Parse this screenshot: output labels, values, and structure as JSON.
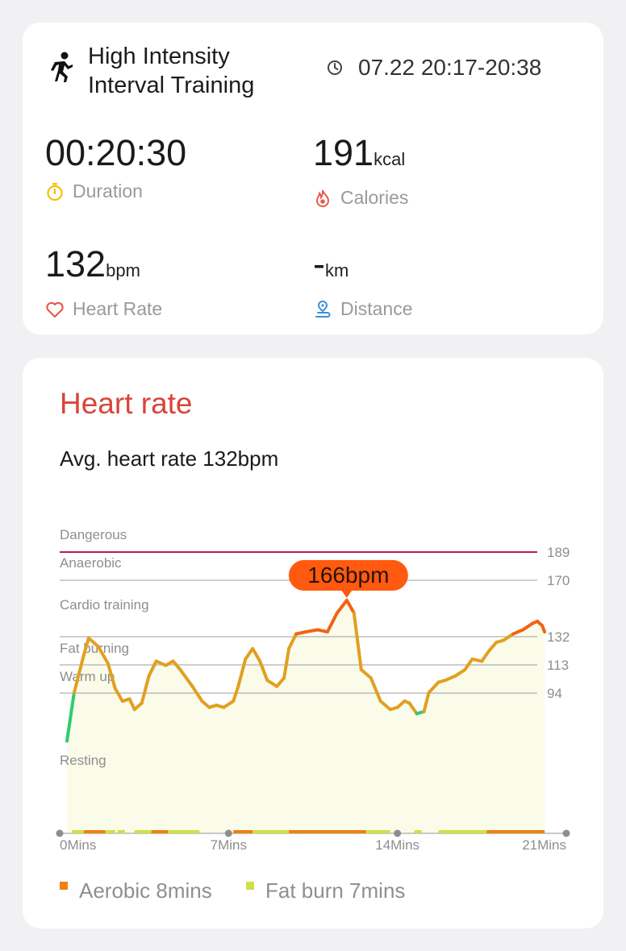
{
  "workout": {
    "title_line1": "High Intensity",
    "title_line2": "Interval Training",
    "time_range": "07.22 20:17-20:38"
  },
  "metrics": {
    "duration": {
      "value": "00:20:30",
      "unit": "",
      "label": "Duration"
    },
    "calories": {
      "value": "191",
      "unit": "kcal",
      "label": "Calories"
    },
    "heart_rate": {
      "value": "132",
      "unit": "bpm",
      "label": "Heart Rate"
    },
    "distance": {
      "value": "-",
      "unit": "km",
      "label": "Distance"
    }
  },
  "heart_card": {
    "title": "Heart rate",
    "avg_text": "Avg. heart rate 132bpm"
  },
  "chart_data": {
    "type": "line",
    "peak_label": "166bpm",
    "zones": [
      {
        "name": "Dangerous",
        "threshold": 189,
        "color": "#c2185b"
      },
      {
        "name": "Anaerobic",
        "threshold": 170,
        "color": "#bdbdbd"
      },
      {
        "name": "Cardio training",
        "threshold": null,
        "color": "#bdbdbd"
      },
      {
        "name": "Fat burning",
        "threshold": 132,
        "color": "#bdbdbd"
      },
      {
        "name": "Warm up",
        "threshold": 113,
        "color": "#bdbdbd"
      },
      {
        "name": "Resting",
        "threshold": 94,
        "color": "#bdbdbd"
      }
    ],
    "y_ticks": [
      "189",
      "170",
      "132",
      "113",
      "94"
    ],
    "x_ticks": [
      "0Mins",
      "7Mins",
      "14Mins",
      "21Mins"
    ],
    "series": [
      {
        "values": [
          [
            0.3,
            99
          ],
          [
            0.6,
            122
          ],
          [
            1.0,
            140
          ],
          [
            1.2,
            148
          ],
          [
            1.6,
            144
          ],
          [
            2.0,
            136
          ],
          [
            2.3,
            124
          ],
          [
            2.6,
            118
          ],
          [
            2.9,
            119
          ],
          [
            3.1,
            114
          ],
          [
            3.4,
            117
          ],
          [
            3.7,
            130
          ],
          [
            4.0,
            137
          ],
          [
            4.4,
            135
          ],
          [
            4.7,
            137
          ],
          [
            5.0,
            133
          ],
          [
            5.5,
            125
          ],
          [
            5.9,
            118
          ],
          [
            6.2,
            115
          ],
          [
            6.5,
            116
          ],
          [
            6.8,
            115
          ],
          [
            7.2,
            118
          ],
          [
            7.4,
            125
          ],
          [
            7.7,
            138
          ],
          [
            8.0,
            143
          ],
          [
            8.3,
            137
          ],
          [
            8.6,
            128
          ],
          [
            9.0,
            125
          ],
          [
            9.3,
            129
          ],
          [
            9.5,
            143
          ],
          [
            9.8,
            150
          ],
          [
            10.2,
            151
          ],
          [
            10.7,
            152
          ],
          [
            11.1,
            151
          ],
          [
            11.5,
            160
          ],
          [
            11.9,
            166
          ],
          [
            12.2,
            160
          ],
          [
            12.5,
            133
          ],
          [
            12.9,
            129
          ],
          [
            13.3,
            118
          ],
          [
            13.7,
            114
          ],
          [
            14.0,
            115
          ],
          [
            14.3,
            118
          ],
          [
            14.5,
            117
          ],
          [
            14.8,
            112
          ],
          [
            15.1,
            113
          ],
          [
            15.3,
            122
          ],
          [
            15.7,
            127
          ],
          [
            16.0,
            128
          ],
          [
            16.4,
            130
          ],
          [
            16.8,
            133
          ],
          [
            17.1,
            138
          ],
          [
            17.5,
            137
          ],
          [
            17.8,
            142
          ],
          [
            18.1,
            146
          ],
          [
            18.4,
            147
          ],
          [
            18.8,
            150
          ],
          [
            19.2,
            152
          ],
          [
            19.6,
            155
          ],
          [
            19.8,
            156
          ],
          [
            20.0,
            154
          ],
          [
            20.1,
            151
          ]
        ]
      }
    ],
    "ylim": [
      55,
      195
    ],
    "xlim": [
      0,
      21
    ],
    "colors": {
      "warm_up": "#2ecc71",
      "fat_burn": "#e0a020",
      "aerobic": "#f06414",
      "fill": "#fafbe9"
    }
  },
  "legend": {
    "aerobic": {
      "label": "Aerobic 8mins",
      "color": "#f07f14"
    },
    "fat_burn": {
      "label": "Fat burn 7mins",
      "color": "#cfe04a"
    }
  }
}
